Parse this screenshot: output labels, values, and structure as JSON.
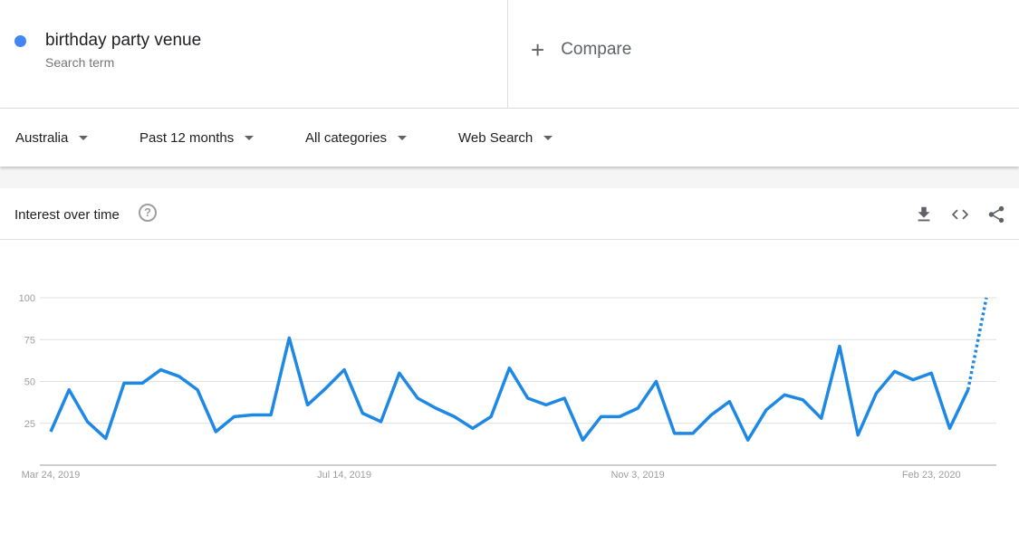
{
  "search_term": {
    "name": "birthday party venue",
    "subtitle": "Search term",
    "color": "#4285f4"
  },
  "compare": {
    "label": "Compare",
    "icon": "plus-icon"
  },
  "filters": [
    {
      "label": "Australia"
    },
    {
      "label": "Past 12 months"
    },
    {
      "label": "All categories"
    },
    {
      "label": "Web Search"
    }
  ],
  "card": {
    "title": "Interest over time",
    "icons": [
      "help-icon",
      "download-icon",
      "embed-code-icon",
      "share-icon"
    ]
  },
  "chart_data": {
    "type": "line",
    "line_color": "#1e88e5",
    "start_date": "Mar 24, 2019",
    "interval": "weekly",
    "ylim": [
      0,
      100
    ],
    "yticks": [
      "25",
      "50",
      "75",
      "100"
    ],
    "xtick_labels": [
      {
        "label": "Mar 24, 2019",
        "index": 0
      },
      {
        "label": "Jul 14, 2019",
        "index": 16
      },
      {
        "label": "Nov 3, 2019",
        "index": 32
      },
      {
        "label": "Feb 23, 2020",
        "index": 48
      }
    ],
    "values": [
      20,
      45,
      26,
      16,
      49,
      49,
      57,
      53,
      45,
      20,
      29,
      30,
      30,
      76,
      36,
      46,
      57,
      31,
      26,
      55,
      40,
      34,
      29,
      22,
      29,
      58,
      40,
      36,
      40,
      15,
      29,
      29,
      34,
      50,
      19,
      19,
      30,
      38,
      15,
      33,
      42,
      39,
      28,
      71,
      18,
      43,
      56,
      51,
      55,
      22,
      45,
      100
    ],
    "partial_last_point": true,
    "grid": true
  }
}
